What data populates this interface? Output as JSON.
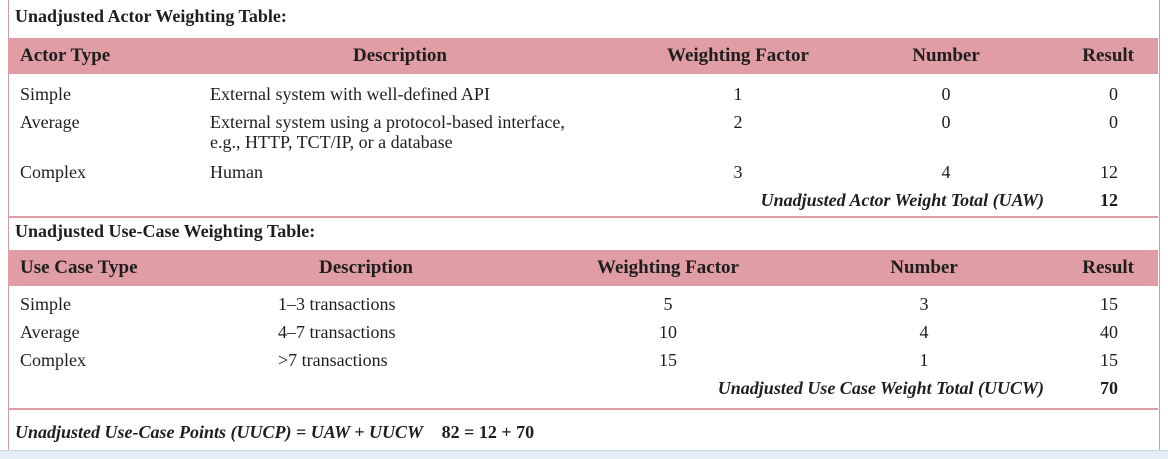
{
  "actor_section": {
    "title": "Unadjusted Actor Weighting Table:",
    "headers": {
      "type": "Actor Type",
      "description": "Description",
      "factor": "Weighting Factor",
      "number": "Number",
      "result": "Result"
    },
    "rows": [
      {
        "type": "Simple",
        "description": "External system with well-defined API",
        "factor": "1",
        "number": "0",
        "result": "0"
      },
      {
        "type": "Average",
        "description": "External system using a protocol-based interface, e.g., HTTP, TCT/IP, or a database",
        "factor": "2",
        "number": "0",
        "result": "0"
      },
      {
        "type": "Complex",
        "description": "Human",
        "factor": "3",
        "number": "4",
        "result": "12"
      }
    ],
    "total_label": "Unadjusted Actor Weight Total (UAW)",
    "total_value": "12"
  },
  "usecase_section": {
    "title": "Unadjusted Use-Case Weighting Table:",
    "headers": {
      "type": "Use Case Type",
      "description": "Description",
      "factor": "Weighting Factor",
      "number": "Number",
      "result": "Result"
    },
    "rows": [
      {
        "type": "Simple",
        "description": "1–3 transactions",
        "factor": "5",
        "number": "3",
        "result": "15"
      },
      {
        "type": "Average",
        "description": "4–7 transactions",
        "factor": "10",
        "number": "4",
        "result": "40"
      },
      {
        "type": "Complex",
        "description": ">7 transactions",
        "factor": "15",
        "number": "1",
        "result": "15"
      }
    ],
    "total_label": "Unadjusted Use Case Weight Total (UUCW)",
    "total_value": "70"
  },
  "formula": {
    "expression": "Unadjusted Use-Case Points (UUCP) = UAW + UUCW",
    "computation": "82 = 12 + 70"
  },
  "colors": {
    "header_bg": "#e09da3"
  }
}
